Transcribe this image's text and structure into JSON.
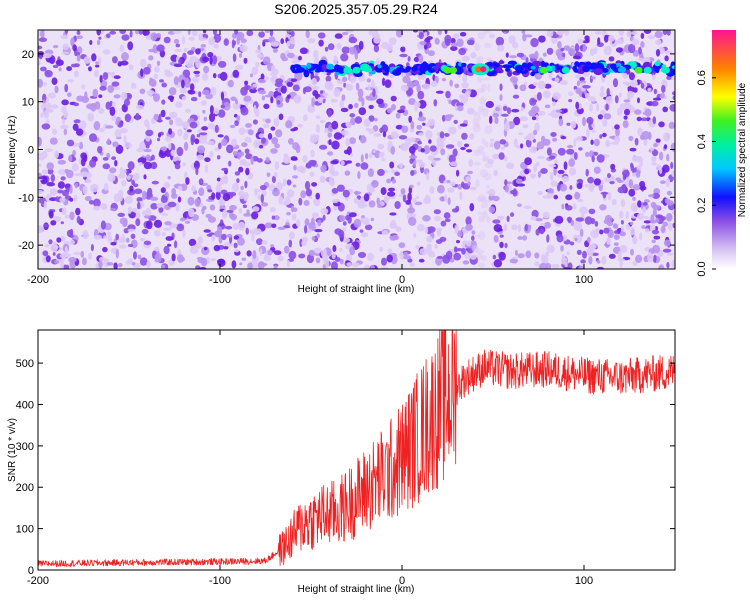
{
  "title": "S206.2025.357.05.29.R24",
  "colors": {
    "line": "#ee2222",
    "frame": "#000000",
    "spectrogram_palette": [
      "#f4eefc",
      "#dcc8f6",
      "#b894ee",
      "#8a4fe4",
      "#6a1ee0",
      "#1010ff",
      "#00b4ff",
      "#00f0c0",
      "#40f020",
      "#ffff00",
      "#ff6a00",
      "#ff1493"
    ]
  },
  "chart_data": [
    {
      "type": "heatmap",
      "xlabel": "Height of straight line (km)",
      "ylabel": "Frequency (Hz)",
      "xlim": [
        -200,
        150
      ],
      "ylim": [
        -25,
        25
      ],
      "xticks": [
        "-200",
        "-100",
        "0",
        "100"
      ],
      "yticks": [
        "-20",
        "-10",
        "0",
        "10",
        "20"
      ],
      "colorbar": {
        "label": "Normalized spectral amplitude",
        "range": [
          0.0,
          0.75
        ],
        "ticks": [
          "0.0",
          "0.2",
          "0.4",
          "0.6"
        ]
      },
      "band": {
        "frequency": 17,
        "x_start": -60,
        "x_end": 150,
        "peak_x": 43,
        "peak_amplitude": 0.72
      },
      "gap": {
        "x_start": 40,
        "x_end": 48
      }
    },
    {
      "type": "line",
      "xlabel": "Height of straight line (km)",
      "ylabel": "SNR (10 * v/v)",
      "xlim": [
        -200,
        150
      ],
      "ylim": [
        0,
        580
      ],
      "xticks": [
        "-200",
        "-100",
        "0",
        "100"
      ],
      "yticks": [
        "0",
        "100",
        "200",
        "300",
        "400",
        "500"
      ],
      "series": [
        {
          "x": [
            -200,
            -150,
            -100,
            -75,
            -65,
            -55,
            -45,
            -35,
            -25,
            -15,
            -5,
            5,
            15,
            25,
            35,
            45,
            60,
            80,
            100,
            120,
            150
          ],
          "y": [
            15,
            18,
            20,
            22,
            55,
            110,
            130,
            140,
            175,
            210,
            245,
            300,
            360,
            420,
            465,
            490,
            480,
            485,
            470,
            465,
            480
          ]
        }
      ]
    }
  ]
}
